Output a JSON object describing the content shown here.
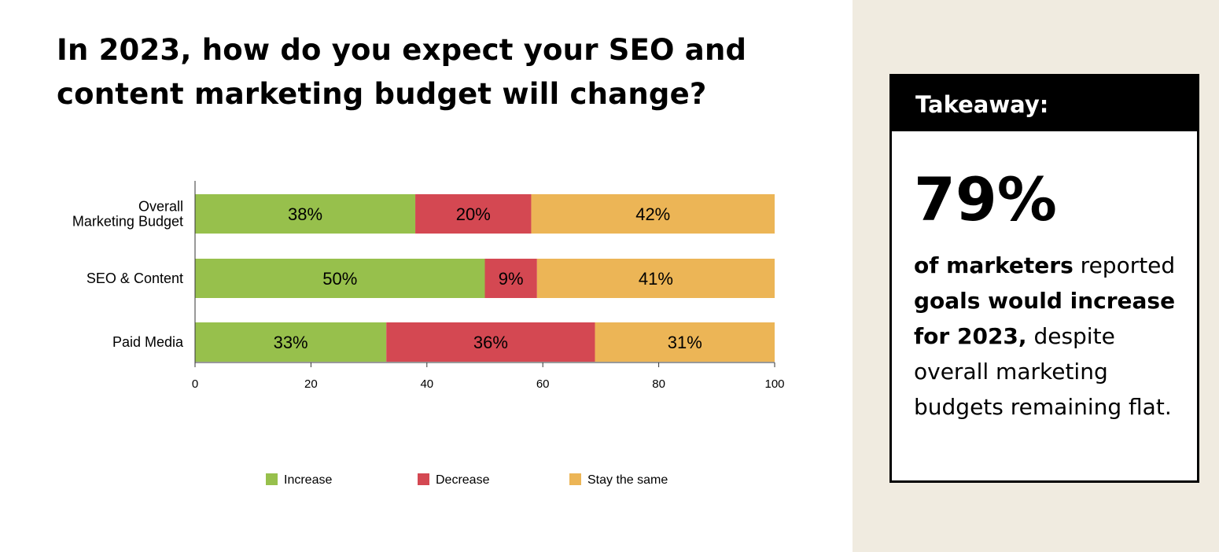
{
  "title": {
    "line1": "In 2023, how do you expect your SEO and",
    "line2": "content marketing budget will change?"
  },
  "chart_data": {
    "type": "bar",
    "orientation": "horizontal",
    "stacked": true,
    "categories": [
      [
        "Overall",
        "Marketing Budget"
      ],
      [
        "SEO & Content"
      ],
      [
        "Paid Media"
      ]
    ],
    "series": [
      {
        "name": "Increase",
        "values": [
          38,
          50,
          33
        ],
        "labels": [
          "38%",
          "50%",
          "33%"
        ],
        "color": "#97c04c"
      },
      {
        "name": "Decrease",
        "values": [
          20,
          9,
          36
        ],
        "labels": [
          "20%",
          "9%",
          "36%"
        ],
        "color": "#d44852"
      },
      {
        "name": "Stay the same",
        "values": [
          42,
          41,
          31
        ],
        "labels": [
          "42%",
          "41%",
          "31%"
        ],
        "color": "#ecb556"
      }
    ],
    "xlim": [
      0,
      100
    ],
    "xticks": [
      0,
      20,
      40,
      60,
      80,
      100
    ],
    "legend_position": "bottom",
    "grid": false
  },
  "takeaway": {
    "header": "Takeaway:",
    "stat": "79%",
    "parts": [
      {
        "text": "of marketers",
        "bold": true
      },
      {
        "text": " reported ",
        "bold": false
      },
      {
        "text": "goals would increase for 2023,",
        "bold": true
      },
      {
        "text": " despite overall marketing budgets remaining flat.",
        "bold": false
      }
    ]
  }
}
